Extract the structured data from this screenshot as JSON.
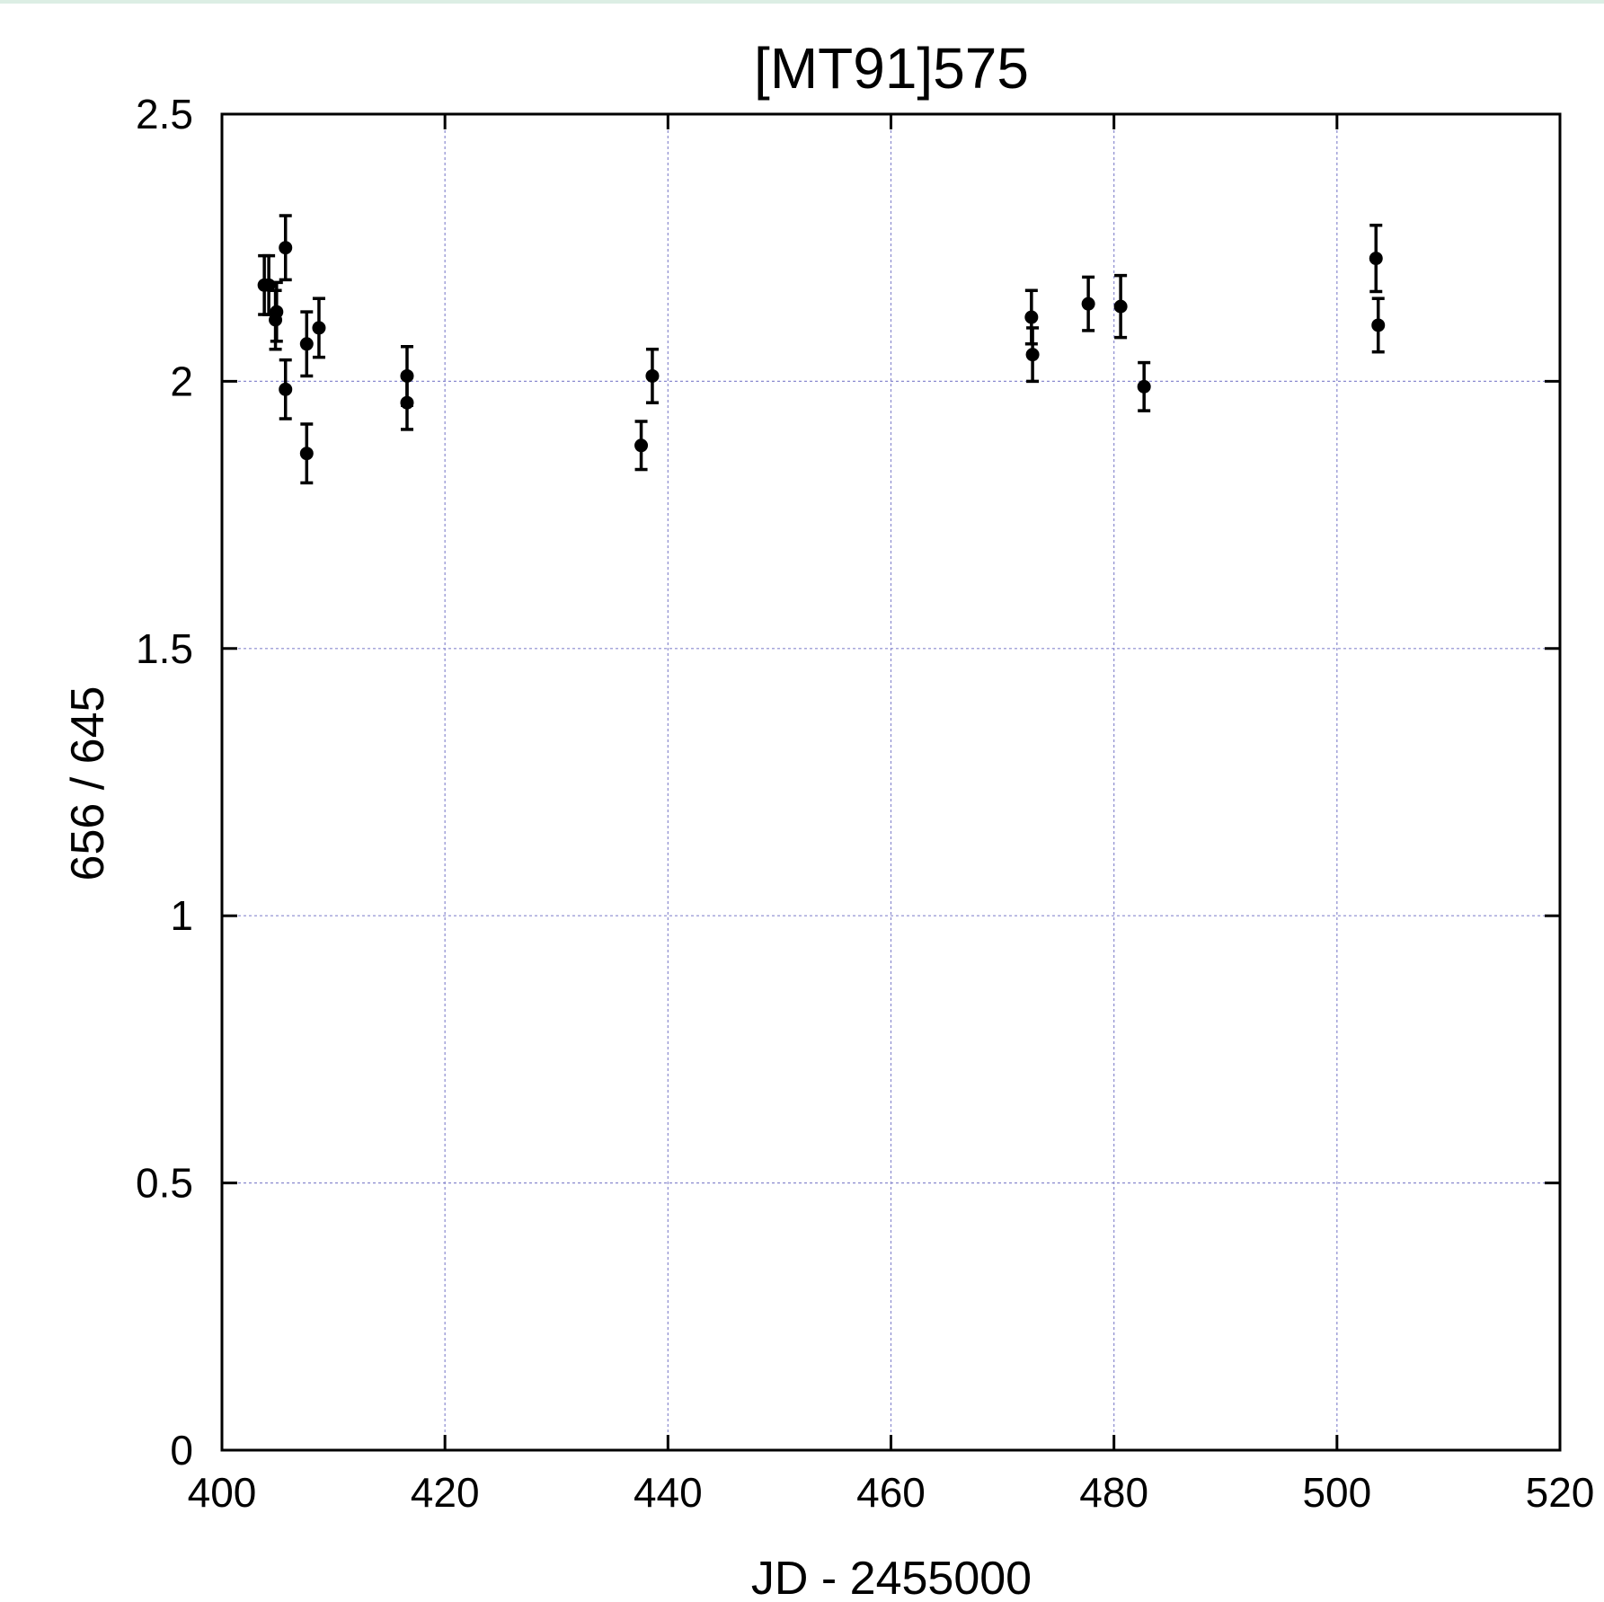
{
  "chart_data": {
    "type": "scatter",
    "title": "[MT91]575",
    "xlabel": "JD - 2455000",
    "ylabel": "656 / 645",
    "xlim": [
      400,
      520
    ],
    "ylim": [
      0,
      2.5
    ],
    "xticks": [
      400,
      420,
      440,
      460,
      480,
      500,
      520
    ],
    "yticks": [
      0,
      0.5,
      1,
      1.5,
      2,
      2.5
    ],
    "xtick_labels": [
      "400",
      "420",
      "440",
      "460",
      "480",
      "500",
      "520"
    ],
    "ytick_labels": [
      "0",
      "0.5",
      "1",
      "1.5",
      "2",
      "2.5"
    ],
    "grid": true,
    "legend": "none",
    "points": [
      {
        "x": 403.8,
        "y": 2.18,
        "err": 0.055
      },
      {
        "x": 404.2,
        "y": 2.18,
        "err": 0.055
      },
      {
        "x": 404.9,
        "y": 2.13,
        "err": 0.055
      },
      {
        "x": 404.8,
        "y": 2.115,
        "err": 0.055
      },
      {
        "x": 405.7,
        "y": 2.25,
        "err": 0.06
      },
      {
        "x": 405.7,
        "y": 1.985,
        "err": 0.055
      },
      {
        "x": 407.6,
        "y": 2.07,
        "err": 0.06
      },
      {
        "x": 407.6,
        "y": 1.865,
        "err": 0.055
      },
      {
        "x": 408.7,
        "y": 2.1,
        "err": 0.055
      },
      {
        "x": 416.6,
        "y": 2.01,
        "err": 0.055
      },
      {
        "x": 416.6,
        "y": 1.96,
        "err": 0.05
      },
      {
        "x": 437.6,
        "y": 1.88,
        "err": 0.045
      },
      {
        "x": 438.6,
        "y": 2.01,
        "err": 0.05
      },
      {
        "x": 472.6,
        "y": 2.12,
        "err": 0.05
      },
      {
        "x": 472.7,
        "y": 2.05,
        "err": 0.05
      },
      {
        "x": 477.7,
        "y": 2.145,
        "err": 0.05
      },
      {
        "x": 480.6,
        "y": 2.14,
        "err": 0.058
      },
      {
        "x": 482.7,
        "y": 1.99,
        "err": 0.045
      },
      {
        "x": 503.5,
        "y": 2.23,
        "err": 0.062
      },
      {
        "x": 503.7,
        "y": 2.105,
        "err": 0.05
      }
    ]
  }
}
